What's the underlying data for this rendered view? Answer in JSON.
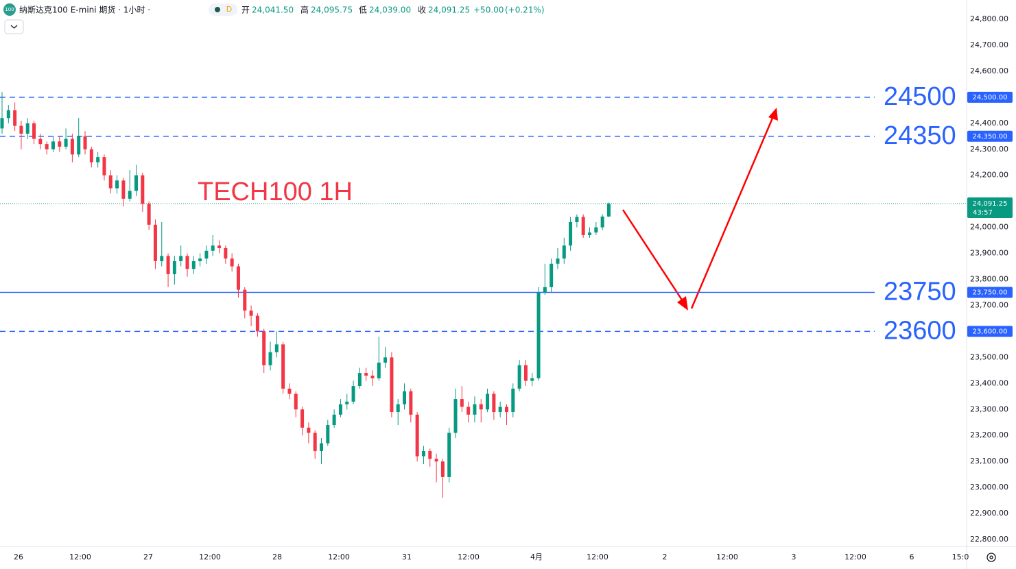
{
  "chart_data": {
    "type": "candlestick",
    "title": "纳斯达克100 E-mini 期货 · 1小时 ·",
    "interval_badge": "D",
    "legend": {
      "open_label": "开",
      "open": {
        "value": 24041.5,
        "label": "24,041.50"
      },
      "high_label": "高",
      "high": {
        "value": 24095.75,
        "label": "24,095.75"
      },
      "low_label": "低",
      "low": {
        "value": 24039,
        "label": "24,039.00"
      },
      "close_label": "收",
      "close": {
        "value": 24091.25,
        "label": "24,091.25"
      },
      "change": {
        "value": 50,
        "label": "+50.00"
      },
      "change_pct": {
        "value": 0.21,
        "label": "(+0.21%)"
      }
    },
    "annotation": "TECH100 1H",
    "up_color": "#089981",
    "down_color": "#f23645",
    "level_color": "#2962ff",
    "ylim": [
      22800,
      24800
    ],
    "yticks": [
      {
        "value": 22800,
        "label": "22,800.00"
      },
      {
        "value": 22900,
        "label": "22,900.00"
      },
      {
        "value": 23000,
        "label": "23,000.00"
      },
      {
        "value": 23100,
        "label": "23,100.00"
      },
      {
        "value": 23200,
        "label": "23,200.00"
      },
      {
        "value": 23300,
        "label": "23,300.00"
      },
      {
        "value": 23400,
        "label": "23,400.00"
      },
      {
        "value": 23500,
        "label": "23,500.00"
      },
      {
        "value": 23700,
        "label": "23,700.00"
      },
      {
        "value": 23800,
        "label": "23,800.00"
      },
      {
        "value": 23900,
        "label": "23,900.00"
      },
      {
        "value": 24000,
        "label": "24,000.00"
      },
      {
        "value": 24200,
        "label": "24,200.00"
      },
      {
        "value": 24300,
        "label": "24,300.00"
      },
      {
        "value": 24400,
        "label": "24,400.00"
      },
      {
        "value": 24600,
        "label": "24,600.00"
      },
      {
        "value": 24700,
        "label": "24,700.00"
      },
      {
        "value": 24800,
        "label": "24,800.00"
      }
    ],
    "levels": [
      {
        "value": 24500,
        "label": "24,500.00",
        "style": "dashed"
      },
      {
        "value": 24350,
        "label": "24,350.00",
        "style": "dashed"
      },
      {
        "value": 23750,
        "label": "23,750.00",
        "style": "solid"
      },
      {
        "value": 23600,
        "label": "23,600.00",
        "style": "dashed"
      }
    ],
    "last_price": {
      "value": 24091.25,
      "label": "24,091.25"
    },
    "countdown": "43:57",
    "x_labels": [
      "26",
      "12:00",
      "27",
      "12:00",
      "28",
      "12:00",
      "31",
      "12:00",
      "4月",
      "12:00",
      "2",
      "12:00",
      "3",
      "12:00",
      "6",
      "15:0"
    ],
    "ohlc": [
      [
        24380,
        24520,
        24360,
        24420
      ],
      [
        24420,
        24470,
        24400,
        24450
      ],
      [
        24450,
        24480,
        24370,
        24390
      ],
      [
        24390,
        24410,
        24300,
        24360
      ],
      [
        24360,
        24420,
        24340,
        24400
      ],
      [
        24400,
        24410,
        24320,
        24340
      ],
      [
        24340,
        24360,
        24300,
        24320
      ],
      [
        24320,
        24330,
        24280,
        24300
      ],
      [
        24300,
        24350,
        24290,
        24330
      ],
      [
        24330,
        24350,
        24290,
        24310
      ],
      [
        24310,
        24380,
        24300,
        24340
      ],
      [
        24340,
        24360,
        24250,
        24280
      ],
      [
        24280,
        24420,
        24270,
        24350
      ],
      [
        24350,
        24370,
        24280,
        24300
      ],
      [
        24300,
        24310,
        24230,
        24250
      ],
      [
        24250,
        24290,
        24230,
        24270
      ],
      [
        24270,
        24280,
        24180,
        24200
      ],
      [
        24200,
        24220,
        24130,
        24150
      ],
      [
        24150,
        24200,
        24130,
        24180
      ],
      [
        24180,
        24190,
        24080,
        24110
      ],
      [
        24110,
        24220,
        24100,
        24140
      ],
      [
        24140,
        24240,
        24120,
        24200
      ],
      [
        24200,
        24210,
        24060,
        24090
      ],
      [
        24090,
        24100,
        23990,
        24010
      ],
      [
        24010,
        24030,
        23840,
        23870
      ],
      [
        23870,
        24020,
        23850,
        23890
      ],
      [
        23890,
        23900,
        23770,
        23820
      ],
      [
        23820,
        23890,
        23780,
        23870
      ],
      [
        23870,
        23930,
        23850,
        23890
      ],
      [
        23890,
        23900,
        23810,
        23840
      ],
      [
        23840,
        23890,
        23820,
        23870
      ],
      [
        23870,
        23900,
        23850,
        23880
      ],
      [
        23880,
        23930,
        23860,
        23910
      ],
      [
        23910,
        23970,
        23890,
        23930
      ],
      [
        23930,
        23950,
        23900,
        23920
      ],
      [
        23920,
        23930,
        23860,
        23880
      ],
      [
        23880,
        23900,
        23830,
        23850
      ],
      [
        23850,
        23860,
        23730,
        23760
      ],
      [
        23760,
        23770,
        23650,
        23680
      ],
      [
        23680,
        23700,
        23620,
        23660
      ],
      [
        23660,
        23670,
        23580,
        23600
      ],
      [
        23600,
        23610,
        23440,
        23470
      ],
      [
        23470,
        23560,
        23450,
        23520
      ],
      [
        23520,
        23600,
        23500,
        23550
      ],
      [
        23550,
        23560,
        23360,
        23380
      ],
      [
        23380,
        23400,
        23340,
        23360
      ],
      [
        23360,
        23370,
        23270,
        23300
      ],
      [
        23300,
        23310,
        23200,
        23230
      ],
      [
        23230,
        23250,
        23170,
        23210
      ],
      [
        23210,
        23220,
        23110,
        23140
      ],
      [
        23140,
        23190,
        23090,
        23170
      ],
      [
        23170,
        23260,
        23160,
        23240
      ],
      [
        23240,
        23300,
        23230,
        23280
      ],
      [
        23280,
        23340,
        23270,
        23320
      ],
      [
        23320,
        23360,
        23300,
        23330
      ],
      [
        23330,
        23410,
        23320,
        23390
      ],
      [
        23390,
        23460,
        23380,
        23440
      ],
      [
        23440,
        23460,
        23410,
        23430
      ],
      [
        23430,
        23450,
        23390,
        23420
      ],
      [
        23420,
        23580,
        23410,
        23480
      ],
      [
        23480,
        23540,
        23460,
        23500
      ],
      [
        23500,
        23520,
        23270,
        23290
      ],
      [
        23290,
        23340,
        23240,
        23320
      ],
      [
        23320,
        23400,
        23300,
        23370
      ],
      [
        23370,
        23380,
        23250,
        23280
      ],
      [
        23280,
        23290,
        23100,
        23120
      ],
      [
        23120,
        23160,
        23090,
        23140
      ],
      [
        23140,
        23150,
        23080,
        23110
      ],
      [
        23110,
        23130,
        23020,
        23100
      ],
      [
        23100,
        23110,
        22960,
        23040
      ],
      [
        23040,
        23230,
        23020,
        23210
      ],
      [
        23210,
        23380,
        23190,
        23340
      ],
      [
        23340,
        23390,
        23290,
        23310
      ],
      [
        23310,
        23330,
        23250,
        23280
      ],
      [
        23280,
        23350,
        23250,
        23320
      ],
      [
        23320,
        23340,
        23250,
        23300
      ],
      [
        23300,
        23380,
        23290,
        23360
      ],
      [
        23360,
        23370,
        23260,
        23290
      ],
      [
        23290,
        23330,
        23270,
        23310
      ],
      [
        23310,
        23320,
        23240,
        23290
      ],
      [
        23290,
        23400,
        23270,
        23380
      ],
      [
        23380,
        23490,
        23370,
        23470
      ],
      [
        23470,
        23490,
        23390,
        23410
      ],
      [
        23410,
        23440,
        23390,
        23420
      ],
      [
        23420,
        23770,
        23410,
        23750
      ],
      [
        23750,
        23860,
        23740,
        23770
      ],
      [
        23770,
        23880,
        23750,
        23860
      ],
      [
        23860,
        23920,
        23840,
        23880
      ],
      [
        23880,
        23960,
        23860,
        23930
      ],
      [
        23930,
        24040,
        23910,
        24020
      ],
      [
        24020,
        24050,
        24000,
        24040
      ],
      [
        24040,
        24050,
        23960,
        23970
      ],
      [
        23970,
        24000,
        23960,
        23980
      ],
      [
        23980,
        24020,
        23970,
        24000
      ],
      [
        24000,
        24050,
        23990,
        24041.5
      ],
      [
        24041.5,
        24095.75,
        24039,
        24091.25
      ]
    ]
  }
}
